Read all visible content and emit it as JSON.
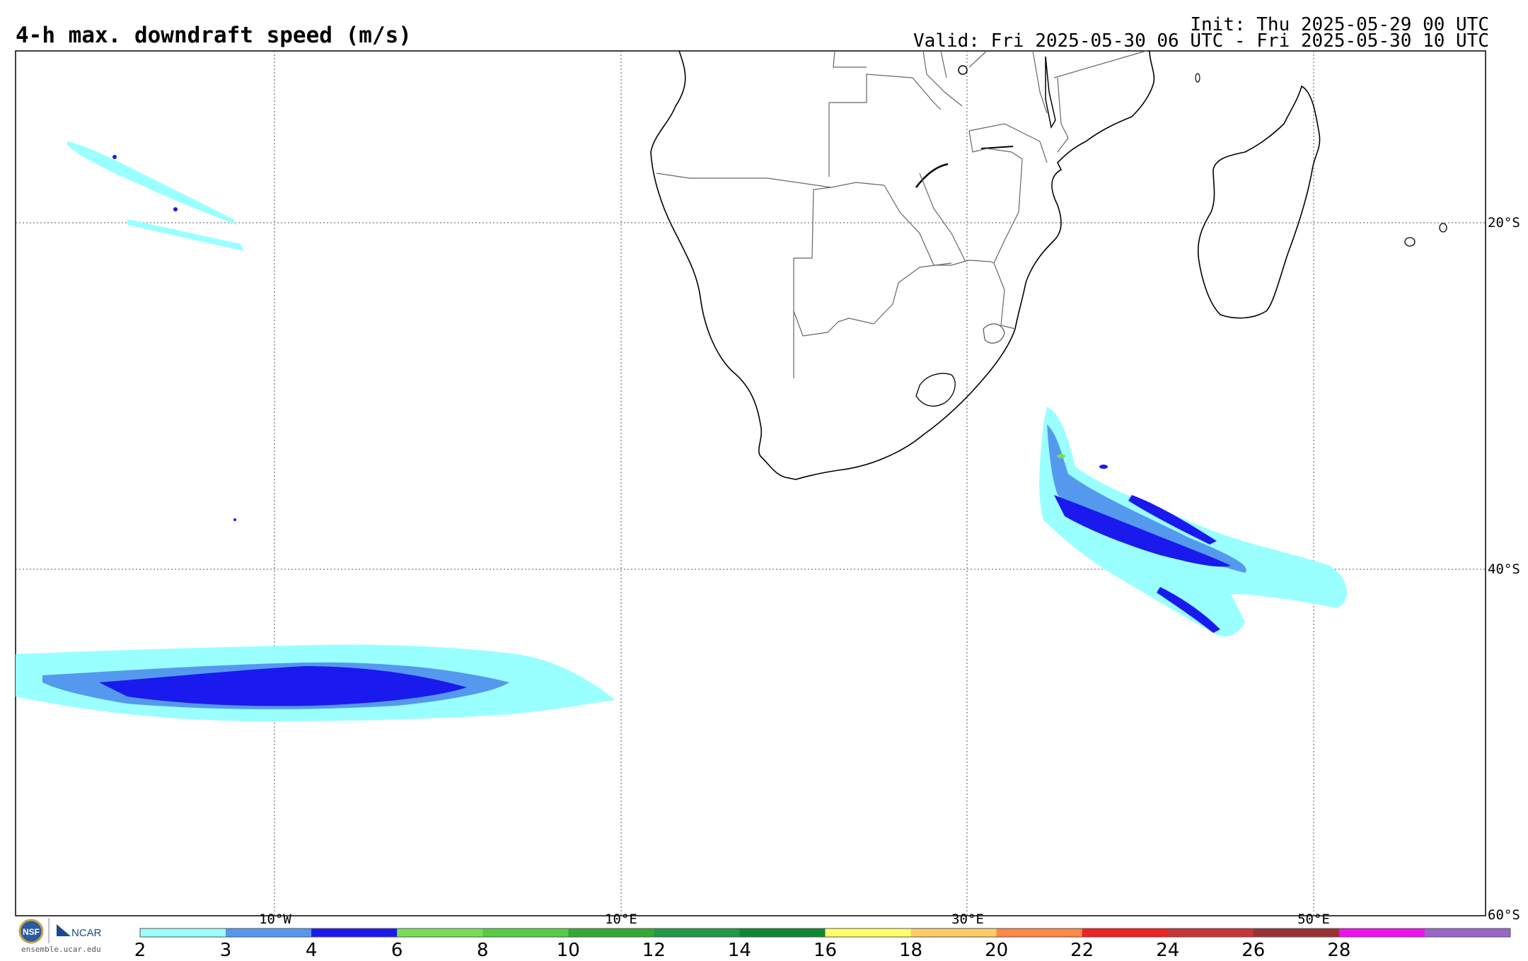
{
  "header": {
    "title": "4-h max. downdraft speed (m/s)",
    "init": "Init: Thu 2025-05-29 00 UTC",
    "valid": "Valid: Fri 2025-05-30 06 UTC - Fri 2025-05-30 10 UTC"
  },
  "map": {
    "lon_labels": [
      "10°W",
      "10°E",
      "30°E",
      "50°E"
    ],
    "lat_labels": [
      "20°S",
      "40°S",
      "60°S"
    ],
    "grid": "dotted"
  },
  "colorbar": {
    "ticks": [
      "2",
      "3",
      "4",
      "6",
      "8",
      "10",
      "12",
      "14",
      "16",
      "18",
      "20",
      "22",
      "24",
      "26",
      "28"
    ],
    "colors": [
      "#99ffff",
      "#5599ee",
      "#1a1aee",
      "#77dd55",
      "#55cc44",
      "#33aa33",
      "#229944",
      "#118833",
      "#ffff66",
      "#ffcc66",
      "#ff8844",
      "#ee2222",
      "#cc3333",
      "#993333",
      "#ee11ee",
      "#9966cc"
    ]
  },
  "footer": {
    "logo_text": "ensemble.ucar.edu",
    "logo_names": [
      "NSF",
      "NCAR"
    ]
  }
}
